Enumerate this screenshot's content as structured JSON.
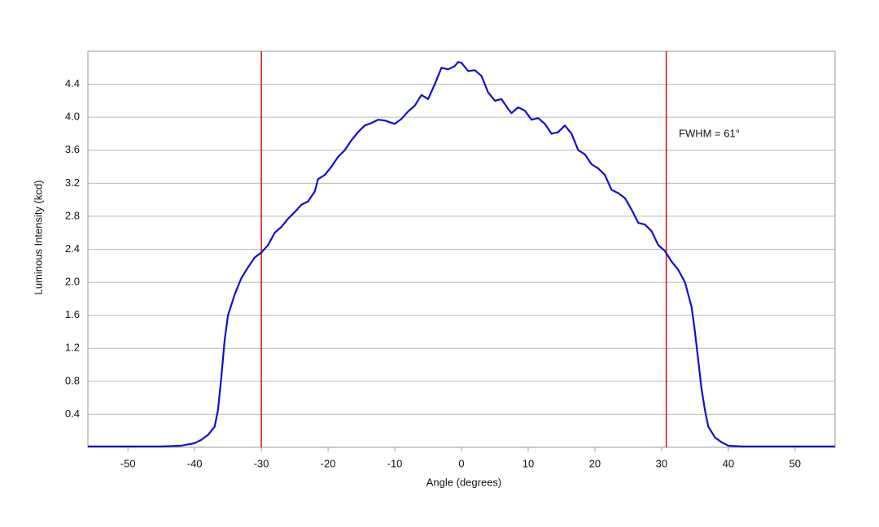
{
  "chart_data": {
    "type": "line",
    "x_label": "Angle (degrees)",
    "y_label": "Luminous Intensity (kcd)",
    "annotation": "FWHM = 61°",
    "x": [
      -56,
      -45,
      -42,
      -40,
      -39,
      -38,
      -37,
      -36.5,
      -36,
      -35.5,
      -35,
      -34,
      -33,
      -32,
      -31,
      -30,
      -29,
      -28,
      -27,
      -26,
      -25,
      -24,
      -23,
      -22,
      -21.5,
      -20.5,
      -19.5,
      -18.5,
      -17.5,
      -16.5,
      -15.5,
      -14.5,
      -13.5,
      -12.5,
      -11.5,
      -10,
      -9,
      -8,
      -7,
      -6,
      -5,
      -4,
      -3,
      -2,
      -1,
      -0.5,
      0,
      1,
      2,
      3,
      4,
      5,
      6,
      7,
      7.5,
      8.5,
      9.5,
      10.5,
      11.5,
      12.5,
      13.5,
      14.5,
      15.5,
      16.5,
      17.5,
      18.5,
      19.5,
      20.5,
      21.5,
      22.5,
      23.5,
      24.5,
      25.5,
      26.5,
      27.5,
      28.5,
      29.5,
      30.5,
      31.5,
      32.5,
      33.5,
      34.5,
      35,
      35.5,
      36,
      36.5,
      37,
      38,
      39,
      40,
      42,
      56
    ],
    "series": [
      {
        "color": "#1010c8",
        "values": [
          0.01,
          0.01,
          0.02,
          0.05,
          0.09,
          0.15,
          0.25,
          0.45,
          0.85,
          1.3,
          1.6,
          1.85,
          2.05,
          2.18,
          2.3,
          2.36,
          2.45,
          2.6,
          2.67,
          2.77,
          2.85,
          2.94,
          2.98,
          3.1,
          3.25,
          3.3,
          3.4,
          3.52,
          3.6,
          3.72,
          3.82,
          3.9,
          3.93,
          3.97,
          3.96,
          3.92,
          3.98,
          4.07,
          4.14,
          4.27,
          4.22,
          4.4,
          4.6,
          4.58,
          4.62,
          4.67,
          4.66,
          4.56,
          4.57,
          4.5,
          4.3,
          4.2,
          4.22,
          4.1,
          4.05,
          4.12,
          4.08,
          3.97,
          3.99,
          3.92,
          3.8,
          3.82,
          3.9,
          3.8,
          3.6,
          3.55,
          3.43,
          3.38,
          3.3,
          3.12,
          3.08,
          3.02,
          2.88,
          2.72,
          2.7,
          2.62,
          2.45,
          2.38,
          2.25,
          2.15,
          2.0,
          1.7,
          1.4,
          1.05,
          0.7,
          0.45,
          0.25,
          0.12,
          0.06,
          0.02,
          0.01,
          0.01
        ]
      }
    ],
    "vlines": [
      -30,
      30.7
    ],
    "vline_color": "#d01010",
    "xlim": [
      -56,
      56
    ],
    "ylim": [
      0,
      4.8
    ],
    "xticks": [
      -50,
      -40,
      -30,
      -20,
      -10,
      0,
      10,
      20,
      30,
      40,
      50
    ],
    "yticks": [
      0.4,
      0.8,
      1.2,
      1.6,
      {
        "value": 2,
        "label": "2.0"
      },
      2.4,
      2.8,
      3.2,
      3.6,
      {
        "value": 4,
        "label": "4.0"
      },
      4.4
    ],
    "grid": true
  }
}
